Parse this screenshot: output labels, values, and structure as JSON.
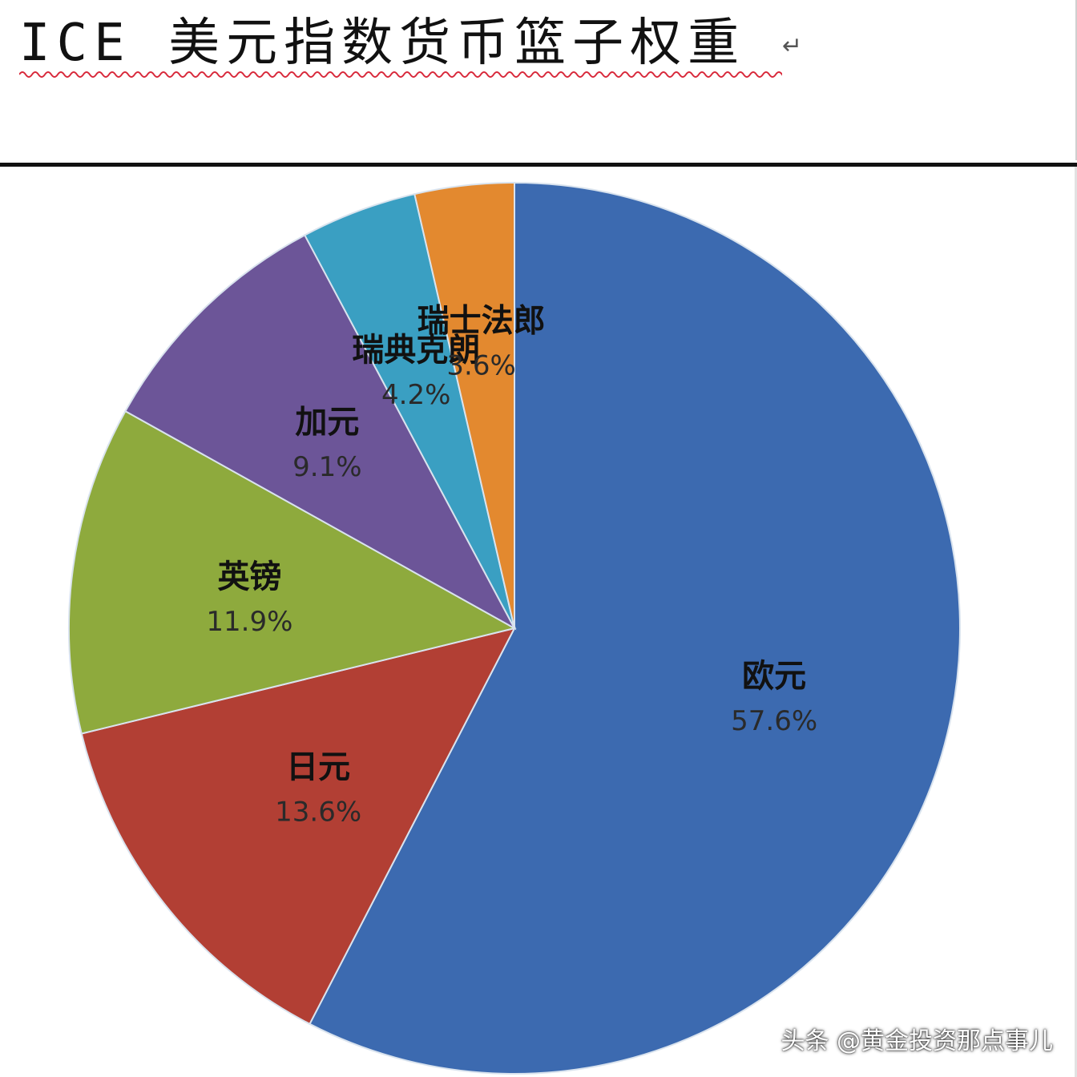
{
  "header": {
    "title": "ICE 美元指数货币篮子权重",
    "return_mark": "↵"
  },
  "watermark": "头条 @黄金投资那点事儿",
  "chart_data": {
    "type": "pie",
    "title": "",
    "start_angle_deg": 0,
    "direction": "clockwise",
    "slices": [
      {
        "label": "欧元",
        "value": 57.6,
        "display": "57.6%",
        "color": "#3c6ab0"
      },
      {
        "label": "日元",
        "value": 13.6,
        "display": "13.6%",
        "color": "#b23f34"
      },
      {
        "label": "英镑",
        "value": 11.9,
        "display": "11.9%",
        "color": "#8eaa3d"
      },
      {
        "label": "加元",
        "value": 9.1,
        "display": "9.1%",
        "color": "#6c5598"
      },
      {
        "label": "瑞典克朗",
        "value": 4.2,
        "display": "4.2%",
        "color": "#3a9fc2"
      },
      {
        "label": "瑞士法郎",
        "value": 3.6,
        "display": "3.6%",
        "color": "#e3892f"
      }
    ]
  }
}
